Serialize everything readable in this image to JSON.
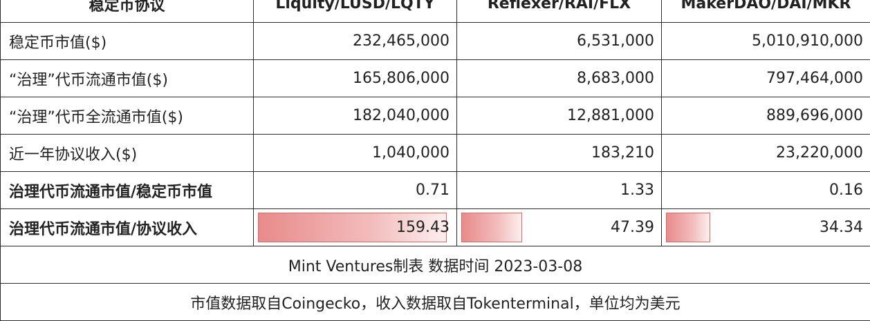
{
  "header": [
    "稳定币协议",
    "Liquity/LUSD/LQTY",
    "Reflexer/RAI/FLX",
    "MakerDAO/DAI/MKR"
  ],
  "rows": [
    {
      "label": "稳定币市值($)",
      "values": [
        "232,465,000",
        "6,531,000",
        "5,010,910,000"
      ]
    },
    {
      "label": "“治理”代币流通市值($)",
      "values": [
        "165,806,000",
        "8,683,000",
        "797,464,000"
      ]
    },
    {
      "label": "“治理”代币全流通市值($)",
      "values": [
        "182,040,000",
        "12,881,000",
        "889,696,000"
      ]
    },
    {
      "label": "近一年协议收入($)",
      "values": [
        "1,040,000",
        "183,210",
        "23,220,000"
      ]
    },
    {
      "label": "治理代币流通市值/稳定币市值",
      "values": [
        "0.71",
        "1.33",
        "0.16"
      ]
    }
  ],
  "bar_row": {
    "label": "治理代币流通市值/协议收入",
    "values": [
      "159.43",
      "47.39",
      "34.34"
    ],
    "fill_fractions": [
      0.97,
      0.31,
      0.22
    ],
    "bar_color": "#e88b8b"
  },
  "footer": {
    "line1": "Mint Ventures制表 数据时间 2023-03-08",
    "line2": "市值数据取自Coingecko，收入数据取自Tokenterminal，单位均为美元"
  }
}
